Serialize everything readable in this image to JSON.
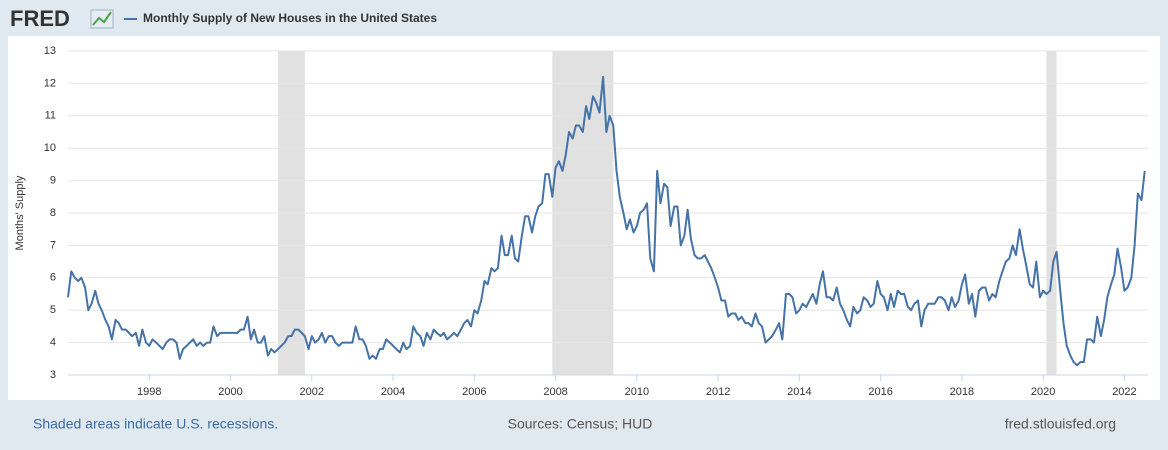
{
  "chart_data": {
    "type": "line",
    "logo": "FRED",
    "ylabel": "Months' Supply",
    "note": "Shaded areas indicate U.S. recessions.",
    "source": "Sources: Census; HUD",
    "site": "fred.stlouisfed.org",
    "xlim": [
      1996,
      2022.58
    ],
    "xticks": [
      1998,
      2000,
      2002,
      2004,
      2006,
      2008,
      2010,
      2012,
      2014,
      2016,
      2018,
      2020,
      2022
    ],
    "ylim": [
      3,
      13
    ],
    "yticks": [
      3,
      4,
      5,
      6,
      7,
      8,
      9,
      10,
      11,
      12,
      13
    ],
    "grid": true,
    "recession_color": "#e1e1e1",
    "recessions": [
      [
        2001.17,
        2001.83
      ],
      [
        2007.92,
        2009.42
      ],
      [
        2020.08,
        2020.33
      ]
    ],
    "x": [
      1996,
      1996.08,
      1996.17,
      1996.25,
      1996.33,
      1996.42,
      1996.5,
      1996.58,
      1996.67,
      1996.75,
      1996.83,
      1996.92,
      1997,
      1997.08,
      1997.17,
      1997.25,
      1997.33,
      1997.42,
      1997.5,
      1997.58,
      1997.67,
      1997.75,
      1997.83,
      1997.92,
      1998,
      1998.08,
      1998.17,
      1998.25,
      1998.33,
      1998.42,
      1998.5,
      1998.58,
      1998.67,
      1998.75,
      1998.83,
      1998.92,
      1999,
      1999.08,
      1999.17,
      1999.25,
      1999.33,
      1999.42,
      1999.5,
      1999.58,
      1999.67,
      1999.75,
      1999.83,
      1999.92,
      2000,
      2000.08,
      2000.17,
      2000.25,
      2000.33,
      2000.42,
      2000.5,
      2000.58,
      2000.67,
      2000.75,
      2000.83,
      2000.92,
      2001,
      2001.08,
      2001.17,
      2001.25,
      2001.33,
      2001.42,
      2001.5,
      2001.58,
      2001.67,
      2001.75,
      2001.83,
      2001.92,
      2002,
      2002.08,
      2002.17,
      2002.25,
      2002.33,
      2002.42,
      2002.5,
      2002.58,
      2002.67,
      2002.75,
      2002.83,
      2002.92,
      2003,
      2003.08,
      2003.17,
      2003.25,
      2003.33,
      2003.42,
      2003.5,
      2003.58,
      2003.67,
      2003.75,
      2003.83,
      2003.92,
      2004,
      2004.08,
      2004.17,
      2004.25,
      2004.33,
      2004.42,
      2004.5,
      2004.58,
      2004.67,
      2004.75,
      2004.83,
      2004.92,
      2005,
      2005.08,
      2005.17,
      2005.25,
      2005.33,
      2005.42,
      2005.5,
      2005.58,
      2005.67,
      2005.75,
      2005.83,
      2005.92,
      2006,
      2006.08,
      2006.17,
      2006.25,
      2006.33,
      2006.42,
      2006.5,
      2006.58,
      2006.67,
      2006.75,
      2006.83,
      2006.92,
      2007,
      2007.08,
      2007.17,
      2007.25,
      2007.33,
      2007.42,
      2007.5,
      2007.58,
      2007.67,
      2007.75,
      2007.83,
      2007.92,
      2008,
      2008.08,
      2008.17,
      2008.25,
      2008.33,
      2008.42,
      2008.5,
      2008.58,
      2008.67,
      2008.75,
      2008.83,
      2008.92,
      2009,
      2009.08,
      2009.17,
      2009.25,
      2009.33,
      2009.42,
      2009.5,
      2009.58,
      2009.67,
      2009.75,
      2009.83,
      2009.92,
      2010,
      2010.08,
      2010.17,
      2010.25,
      2010.33,
      2010.42,
      2010.5,
      2010.58,
      2010.67,
      2010.75,
      2010.83,
      2010.92,
      2011,
      2011.08,
      2011.17,
      2011.25,
      2011.33,
      2011.42,
      2011.5,
      2011.58,
      2011.67,
      2011.75,
      2011.83,
      2011.92,
      2012,
      2012.08,
      2012.17,
      2012.25,
      2012.33,
      2012.42,
      2012.5,
      2012.58,
      2012.67,
      2012.75,
      2012.83,
      2012.92,
      2013,
      2013.08,
      2013.17,
      2013.25,
      2013.33,
      2013.42,
      2013.5,
      2013.58,
      2013.67,
      2013.75,
      2013.83,
      2013.92,
      2014,
      2014.08,
      2014.17,
      2014.25,
      2014.33,
      2014.42,
      2014.5,
      2014.58,
      2014.67,
      2014.75,
      2014.83,
      2014.92,
      2015,
      2015.08,
      2015.17,
      2015.25,
      2015.33,
      2015.42,
      2015.5,
      2015.58,
      2015.67,
      2015.75,
      2015.83,
      2015.92,
      2016,
      2016.08,
      2016.17,
      2016.25,
      2016.33,
      2016.42,
      2016.5,
      2016.58,
      2016.67,
      2016.75,
      2016.83,
      2016.92,
      2017,
      2017.08,
      2017.17,
      2017.25,
      2017.33,
      2017.42,
      2017.5,
      2017.58,
      2017.67,
      2017.75,
      2017.83,
      2017.92,
      2018,
      2018.08,
      2018.17,
      2018.25,
      2018.33,
      2018.42,
      2018.5,
      2018.58,
      2018.67,
      2018.75,
      2018.83,
      2018.92,
      2019,
      2019.08,
      2019.17,
      2019.25,
      2019.33,
      2019.42,
      2019.5,
      2019.58,
      2019.67,
      2019.75,
      2019.83,
      2019.92,
      2020,
      2020.08,
      2020.17,
      2020.25,
      2020.33,
      2020.42,
      2020.5,
      2020.58,
      2020.67,
      2020.75,
      2020.83,
      2020.92,
      2021,
      2021.08,
      2021.17,
      2021.25,
      2021.33,
      2021.42,
      2021.5,
      2021.58,
      2021.67,
      2021.75,
      2021.83,
      2021.92,
      2022,
      2022.08,
      2022.17,
      2022.25,
      2022.33,
      2022.42,
      2022.5
    ],
    "series": [
      {
        "name": "Monthly Supply of New Houses in the United States",
        "color": "#4572a7",
        "values": [
          5.4,
          6.2,
          6.0,
          5.9,
          6.0,
          5.7,
          5.0,
          5.2,
          5.6,
          5.2,
          5.0,
          4.7,
          4.5,
          4.1,
          4.7,
          4.6,
          4.4,
          4.4,
          4.3,
          4.2,
          4.3,
          3.9,
          4.4,
          4.0,
          3.9,
          4.1,
          4.0,
          3.9,
          3.8,
          4.0,
          4.1,
          4.1,
          4.0,
          3.5,
          3.8,
          3.9,
          4.0,
          4.1,
          3.9,
          4.0,
          3.9,
          4.0,
          4.0,
          4.5,
          4.2,
          4.3,
          4.3,
          4.3,
          4.3,
          4.3,
          4.3,
          4.4,
          4.4,
          4.8,
          4.1,
          4.4,
          4.0,
          4.0,
          4.2,
          3.6,
          3.8,
          3.7,
          3.8,
          3.9,
          4.0,
          4.2,
          4.2,
          4.4,
          4.4,
          4.3,
          4.2,
          3.8,
          4.2,
          4.0,
          4.1,
          4.3,
          4.0,
          4.2,
          4.2,
          4.0,
          3.9,
          4.0,
          4.0,
          4.0,
          4.0,
          4.5,
          4.1,
          4.1,
          3.9,
          3.5,
          3.6,
          3.5,
          3.8,
          3.8,
          4.1,
          4.0,
          3.9,
          3.8,
          3.7,
          4.0,
          3.8,
          3.9,
          4.5,
          4.3,
          4.2,
          3.9,
          4.3,
          4.1,
          4.4,
          4.3,
          4.2,
          4.3,
          4.1,
          4.2,
          4.3,
          4.2,
          4.4,
          4.6,
          4.7,
          4.5,
          5.0,
          4.9,
          5.3,
          5.9,
          5.8,
          6.3,
          6.2,
          6.3,
          7.3,
          6.7,
          6.7,
          7.3,
          6.6,
          6.5,
          7.3,
          7.9,
          7.9,
          7.4,
          7.9,
          8.2,
          8.3,
          9.2,
          9.2,
          8.5,
          9.4,
          9.6,
          9.3,
          9.8,
          10.5,
          10.3,
          10.7,
          10.7,
          10.5,
          11.3,
          10.9,
          11.6,
          11.4,
          11.1,
          12.2,
          10.5,
          11.0,
          10.7,
          9.3,
          8.5,
          8.0,
          7.5,
          7.8,
          7.4,
          7.6,
          8.0,
          8.1,
          8.3,
          6.6,
          6.2,
          9.3,
          8.3,
          8.9,
          8.8,
          7.6,
          8.2,
          8.2,
          7.0,
          7.3,
          8.1,
          7.2,
          6.7,
          6.6,
          6.6,
          6.7,
          6.5,
          6.3,
          6.0,
          5.7,
          5.3,
          5.3,
          4.8,
          4.9,
          4.9,
          4.7,
          4.8,
          4.6,
          4.6,
          4.5,
          4.9,
          4.6,
          4.5,
          4.0,
          4.1,
          4.2,
          4.4,
          4.6,
          4.1,
          5.5,
          5.5,
          5.4,
          4.9,
          5.0,
          5.2,
          5.1,
          5.3,
          5.5,
          5.2,
          5.8,
          6.2,
          5.4,
          5.4,
          5.3,
          5.7,
          5.2,
          5.0,
          4.7,
          4.5,
          5.1,
          4.9,
          5.0,
          5.4,
          5.3,
          5.1,
          5.2,
          5.9,
          5.5,
          5.4,
          5.0,
          5.5,
          5.1,
          5.6,
          5.5,
          5.5,
          5.1,
          5.0,
          5.2,
          5.3,
          4.5,
          5.0,
          5.2,
          5.2,
          5.2,
          5.4,
          5.4,
          5.3,
          5.0,
          5.4,
          5.1,
          5.3,
          5.8,
          6.1,
          5.2,
          5.5,
          4.8,
          5.6,
          5.7,
          5.7,
          5.3,
          5.5,
          5.4,
          5.9,
          6.2,
          6.5,
          6.6,
          7.0,
          6.7,
          7.5,
          6.9,
          6.4,
          5.8,
          5.7,
          6.5,
          5.4,
          5.6,
          5.5,
          5.6,
          6.5,
          6.8,
          5.6,
          4.6,
          3.9,
          3.6,
          3.4,
          3.3,
          3.4,
          3.4,
          4.1,
          4.1,
          4.0,
          4.8,
          4.2,
          4.7,
          5.4,
          5.8,
          6.1,
          6.9,
          6.3,
          5.6,
          5.7,
          6.0,
          7.0,
          8.6,
          8.4,
          9.3
        ]
      }
    ]
  }
}
